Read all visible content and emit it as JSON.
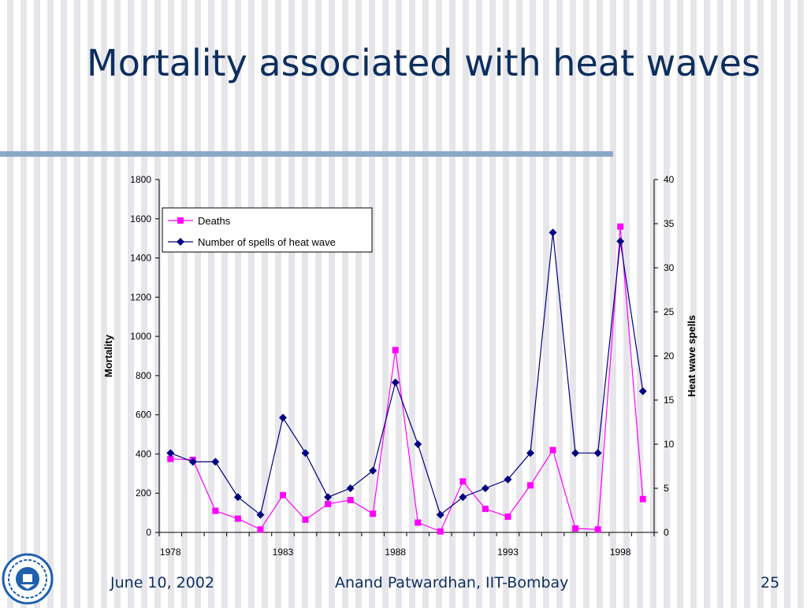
{
  "slide": {
    "title": "Mortality associated with heat waves",
    "footer_date": "June 10, 2002",
    "footer_author": "Anand Patwardhan, IIT-Bombay",
    "page_number": "25",
    "logo_icon": "iit-bombay-logo-icon"
  },
  "chart_data": {
    "type": "line",
    "x": [
      1978,
      1979,
      1980,
      1981,
      1982,
      1983,
      1984,
      1985,
      1986,
      1987,
      1988,
      1989,
      1990,
      1991,
      1992,
      1993,
      1994,
      1995,
      1996,
      1997,
      1998,
      1999
    ],
    "xticks": [
      "1978",
      "1983",
      "1988",
      "1993",
      "1998"
    ],
    "ylabel": "Mortality",
    "y2label": "Heat wave spells",
    "ylim": [
      0,
      1800
    ],
    "y2lim": [
      0,
      40
    ],
    "yticks": [
      "0",
      "200",
      "400",
      "600",
      "800",
      "1000",
      "1200",
      "1400",
      "1600",
      "1800"
    ],
    "y2ticks": [
      "0",
      "5",
      "10",
      "15",
      "20",
      "25",
      "30",
      "35",
      "40"
    ],
    "grid": false,
    "legend_position": "top-left",
    "series": [
      {
        "name": "Deaths",
        "axis": "left",
        "marker": "square",
        "color": "#ff00ff",
        "values": [
          375,
          370,
          110,
          70,
          15,
          190,
          65,
          145,
          165,
          95,
          930,
          50,
          5,
          260,
          120,
          80,
          240,
          420,
          20,
          15,
          1560,
          170
        ]
      },
      {
        "name": "Number of spells of heat wave",
        "axis": "right",
        "marker": "diamond",
        "color": "#000080",
        "values": [
          9,
          8,
          8,
          4,
          2,
          13,
          9,
          4,
          5,
          7,
          17,
          10,
          2,
          4,
          5,
          6,
          9,
          34,
          9,
          9,
          33,
          16
        ]
      }
    ]
  }
}
